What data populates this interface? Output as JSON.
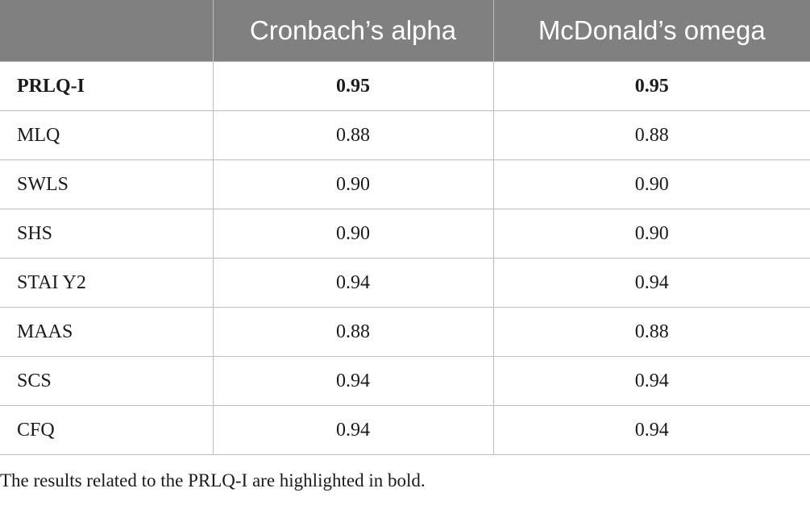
{
  "table": {
    "headers": [
      "",
      "Cronbach’s alpha",
      "McDonald’s omega"
    ],
    "rows": [
      {
        "label": "PRLQ-I",
        "alpha": "0.95",
        "omega": "0.95",
        "bold": true
      },
      {
        "label": "MLQ",
        "alpha": "0.88",
        "omega": "0.88",
        "bold": false
      },
      {
        "label": "SWLS",
        "alpha": "0.90",
        "omega": "0.90",
        "bold": false
      },
      {
        "label": "SHS",
        "alpha": "0.90",
        "omega": "0.90",
        "bold": false
      },
      {
        "label": "STAI Y2",
        "alpha": "0.94",
        "omega": "0.94",
        "bold": false
      },
      {
        "label": "MAAS",
        "alpha": "0.88",
        "omega": "0.88",
        "bold": false
      },
      {
        "label": "SCS",
        "alpha": "0.94",
        "omega": "0.94",
        "bold": false
      },
      {
        "label": "CFQ",
        "alpha": "0.94",
        "omega": "0.94",
        "bold": false
      }
    ],
    "colors": {
      "header_bg": "#808080",
      "header_text": "#ffffff",
      "grid": "#bdbdbd"
    }
  },
  "footnote": "The results related to the PRLQ-I are highlighted in bold."
}
